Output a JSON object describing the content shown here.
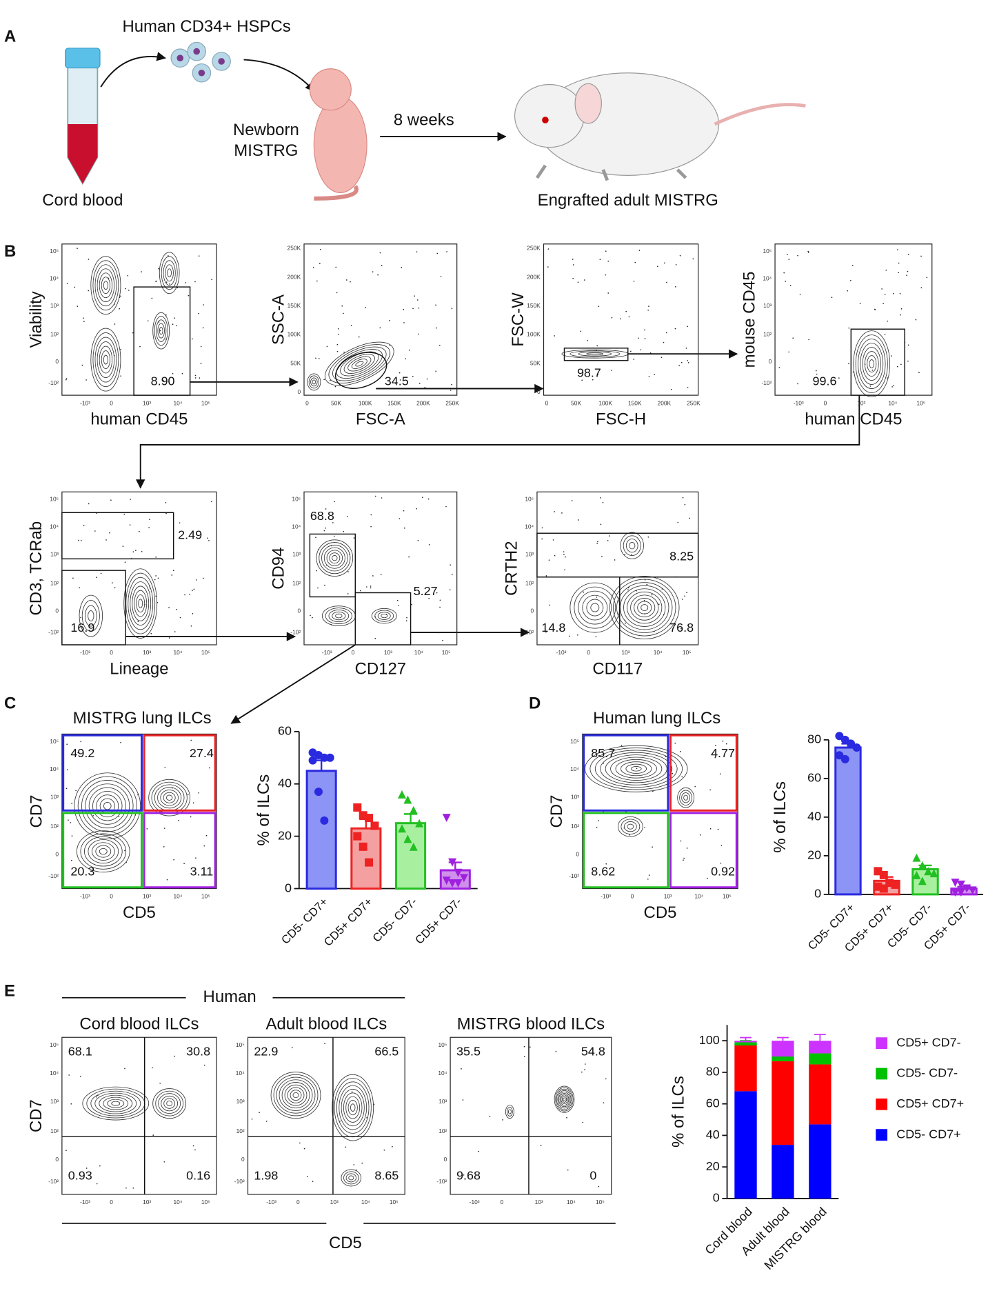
{
  "panel_a": {
    "label": "A",
    "cells": "Human CD34+ HSPCs",
    "source": "Cord blood",
    "recipient": [
      "Newborn",
      "MISTRG"
    ],
    "duration": "8 weeks",
    "result": "Engrafted adult MISTRG"
  },
  "axis_ticks": {
    "log_x": [
      "-10³",
      "0",
      "10³",
      "10⁴",
      "10⁵"
    ],
    "log_y": [
      "-10²",
      "0",
      "10²",
      "10³",
      "10⁴",
      "10⁵"
    ],
    "linear": [
      "0",
      "50K",
      "100K",
      "150K",
      "200K",
      "250K"
    ]
  },
  "panel_b": {
    "label": "B",
    "plots": [
      {
        "x_label": "human CD45",
        "y_label": "Viability",
        "scale": "log",
        "gates": [
          "8.90"
        ]
      },
      {
        "x_label": "FSC-A",
        "y_label": "SSC-A",
        "scale": "linear",
        "gates": [
          "34.5"
        ]
      },
      {
        "x_label": "FSC-H",
        "y_label": "FSC-W",
        "scale": "linear",
        "gates": [
          "98.7"
        ]
      },
      {
        "x_label": "human CD45",
        "y_label": "mouse CD45",
        "scale": "log",
        "gates": [
          "99.6"
        ]
      },
      {
        "x_label": "Lineage",
        "y_label": "CD3, TCRab",
        "scale": "log",
        "gates": [
          "2.49",
          "16.9"
        ]
      },
      {
        "x_label": "CD127",
        "y_label": "CD94",
        "scale": "log",
        "gates": [
          "68.8",
          "5.27"
        ]
      },
      {
        "x_label": "CD117",
        "y_label": "CRTH2",
        "scale": "log",
        "gates": [
          "8.25",
          "14.8",
          "76.8"
        ]
      }
    ]
  },
  "panel_c": {
    "label": "C",
    "title": "MISTRG lung ILCs",
    "x_label": "CD5",
    "y_label": "CD7",
    "quadrants": [
      "49.2",
      "27.4",
      "20.3",
      "3.11"
    ],
    "chart": {
      "type": "bar",
      "y_label": "% of ILCs",
      "categories": [
        "CD5- CD7+",
        "CD5+ CD7+",
        "CD5- CD7-",
        "CD5+ CD7-"
      ],
      "values": [
        45,
        23,
        25,
        7
      ],
      "errors": [
        4,
        3.5,
        3.5,
        3
      ],
      "points": [
        [
          52,
          51,
          50,
          50,
          49,
          37,
          26
        ],
        [
          31,
          28,
          27,
          24,
          20,
          16,
          10
        ],
        [
          36,
          34,
          30,
          25,
          23,
          19,
          16
        ],
        [
          27,
          10,
          6,
          4,
          3,
          2,
          2
        ]
      ],
      "colors": [
        "#2a2ae0",
        "#ee2222",
        "#22c022",
        "#a020e0"
      ],
      "fills": [
        "#8c94f5",
        "#f5a0a0",
        "#a8f0a0",
        "#cf90ea"
      ],
      "markers": [
        "circle",
        "square",
        "triangle",
        "triangle-down"
      ],
      "ylim": [
        0,
        60
      ],
      "yticks": [
        0,
        20,
        40,
        60
      ]
    }
  },
  "panel_d": {
    "label": "D",
    "title": "Human lung ILCs",
    "x_label": "CD5",
    "y_label": "CD7",
    "quadrants": [
      "85.7",
      "4.77",
      "8.62",
      "0.92"
    ],
    "chart": {
      "type": "bar",
      "y_label": "% of ILCs",
      "categories": [
        "CD5- CD7+",
        "CD5+ CD7+",
        "CD5- CD7-",
        "CD5+ CD7-"
      ],
      "values": [
        76,
        7,
        13,
        3
      ],
      "errors": [
        2,
        2,
        2,
        1
      ],
      "points": [
        [
          82,
          80,
          78,
          76,
          72,
          70
        ],
        [
          12,
          10,
          6,
          5,
          4,
          3
        ],
        [
          19,
          15,
          12,
          11,
          10,
          7
        ],
        [
          6,
          5,
          3,
          2,
          1,
          1
        ]
      ],
      "colors": [
        "#2a2ae0",
        "#ee2222",
        "#22c022",
        "#a020e0"
      ],
      "fills": [
        "#8c94f5",
        "#f5a0a0",
        "#a8f0a0",
        "#cf90ea"
      ],
      "markers": [
        "circle",
        "square",
        "triangle",
        "triangle-down"
      ],
      "ylim": [
        0,
        80
      ],
      "yticks": [
        0,
        20,
        40,
        60,
        80
      ]
    }
  },
  "panel_e": {
    "label": "E",
    "group": "Human",
    "x_label": "CD5",
    "y_label": "CD7",
    "plots": [
      {
        "title": "Cord blood ILCs",
        "quadrants": [
          "68.1",
          "30.8",
          "0.93",
          "0.16"
        ]
      },
      {
        "title": "Adult blood ILCs",
        "quadrants": [
          "22.9",
          "66.5",
          "1.98",
          "8.65"
        ]
      },
      {
        "title": "MISTRG blood ILCs",
        "quadrants": [
          "35.5",
          "54.8",
          "9.68",
          "0"
        ]
      }
    ],
    "chart": {
      "type": "stacked_bar",
      "y_label": "% of ILCs",
      "categories": [
        "Cord blood",
        "Adult blood",
        "MISTRG blood"
      ],
      "series": [
        {
          "name": "CD5- CD7+",
          "color": "#0000ff",
          "values": [
            68,
            34,
            47
          ],
          "errors": [
            4,
            4,
            7
          ]
        },
        {
          "name": "CD5+ CD7+",
          "color": "#ff0000",
          "values": [
            29,
            53,
            38
          ],
          "errors": [
            2,
            3,
            5
          ]
        },
        {
          "name": "CD5- CD7-",
          "color": "#00c000",
          "values": [
            2,
            3,
            7
          ],
          "errors": [
            1,
            1,
            3
          ]
        },
        {
          "name": "CD5+ CD7-",
          "color": "#cc33ff",
          "values": [
            1,
            10,
            8
          ],
          "errors": [
            2,
            2,
            4
          ]
        }
      ],
      "ylim": [
        0,
        110
      ],
      "yticks": [
        0,
        20,
        40,
        60,
        80,
        100
      ]
    }
  }
}
